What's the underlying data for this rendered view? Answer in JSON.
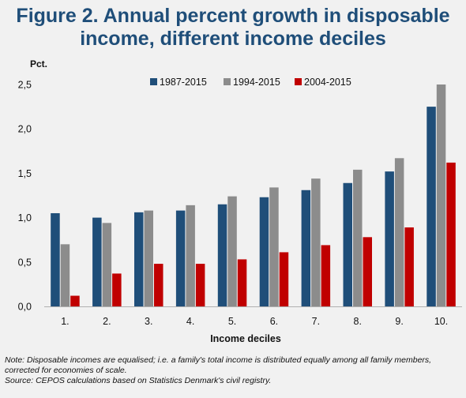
{
  "title_line1": "Figure 2. Annual percent growth in disposable",
  "title_line2": "income, different income deciles",
  "note_line1": "Note: Disposable incomes are equalised; i.e. a family's total income is distributed equally among all family members,",
  "note_line2": "corrected for economies of scale.",
  "note_line3": "Source: CEPOS calculations based on Statistics Denmark's civil registry.",
  "chart_data": {
    "type": "bar",
    "ylabel": "Pct.",
    "xlabel": "Income deciles",
    "ylim": [
      0,
      2.5
    ],
    "yticks": [
      "0,0",
      "0,5",
      "1,0",
      "1,5",
      "2,0",
      "2,5"
    ],
    "ytick_values": [
      0,
      0.5,
      1.0,
      1.5,
      2.0,
      2.5
    ],
    "grid": false,
    "legend_position": "top",
    "categories": [
      "1.",
      "2.",
      "3.",
      "4.",
      "5.",
      "6.",
      "7.",
      "8.",
      "9.",
      "10."
    ],
    "series": [
      {
        "name": "1987-2015",
        "color": "#1f4e79",
        "values": [
          1.05,
          1.0,
          1.06,
          1.08,
          1.15,
          1.23,
          1.31,
          1.39,
          1.52,
          2.25
        ]
      },
      {
        "name": "1994-2015",
        "color": "#8c8c8c",
        "values": [
          0.7,
          0.94,
          1.08,
          1.14,
          1.24,
          1.34,
          1.44,
          1.54,
          1.67,
          2.5
        ]
      },
      {
        "name": "2004-2015",
        "color": "#c00000",
        "values": [
          0.12,
          0.37,
          0.48,
          0.48,
          0.53,
          0.61,
          0.69,
          0.78,
          0.89,
          1.62
        ]
      }
    ]
  }
}
